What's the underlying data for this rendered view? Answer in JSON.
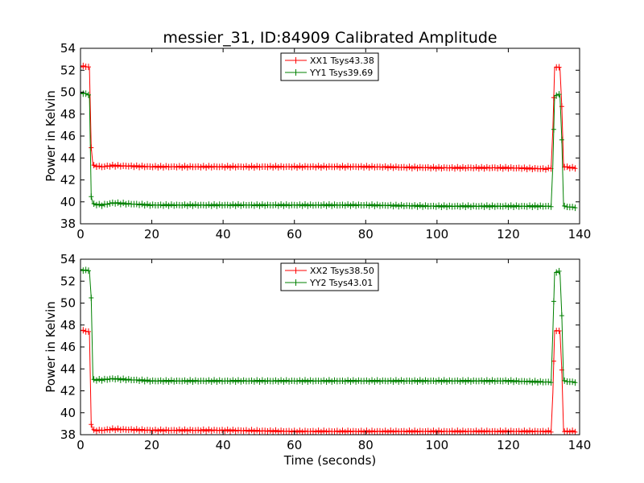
{
  "title": "messier_31, ID:84909 Calibrated Amplitude",
  "colors": {
    "red": "#ff0000",
    "green": "#008000"
  },
  "chart_data": [
    {
      "type": "line",
      "panel": "top",
      "xlabel": "",
      "ylabel": "Power in Kelvin",
      "xlim": [
        0,
        140
      ],
      "ylim": [
        38,
        54
      ],
      "xticks": [
        0,
        20,
        40,
        60,
        80,
        100,
        120,
        140
      ],
      "yticks": [
        38,
        40,
        42,
        44,
        46,
        48,
        50,
        52,
        54
      ],
      "legend_position": "top-center",
      "series": [
        {
          "name": "XX1 Tsys43.38",
          "color": "#ff0000",
          "points": [
            [
              0,
              52.3
            ],
            [
              1,
              52.4
            ],
            [
              2,
              52.3
            ],
            [
              2.5,
              52.2
            ],
            [
              3,
              45
            ],
            [
              3.5,
              43.3
            ],
            [
              6,
              43.2
            ],
            [
              9,
              43.3
            ],
            [
              20,
              43.2
            ],
            [
              40,
              43.2
            ],
            [
              60,
              43.2
            ],
            [
              80,
              43.2
            ],
            [
              100,
              43.1
            ],
            [
              120,
              43.1
            ],
            [
              131,
              43.0
            ],
            [
              132,
              43.1
            ],
            [
              132.5,
              46.6
            ],
            [
              133,
              52.3
            ],
            [
              134,
              52.3
            ],
            [
              134.5,
              52.2
            ],
            [
              135,
              48.7
            ],
            [
              135.5,
              43.2
            ],
            [
              138,
              43.1
            ],
            [
              139,
              43.1
            ]
          ]
        },
        {
          "name": "YY1 Tsys39.69",
          "color": "#008000",
          "points": [
            [
              0,
              49.9
            ],
            [
              1,
              49.9
            ],
            [
              2,
              49.8
            ],
            [
              2.5,
              49.7
            ],
            [
              3,
              40.5
            ],
            [
              3.5,
              39.8
            ],
            [
              6,
              39.7
            ],
            [
              9,
              39.9
            ],
            [
              20,
              39.7
            ],
            [
              40,
              39.7
            ],
            [
              60,
              39.7
            ],
            [
              80,
              39.7
            ],
            [
              100,
              39.6
            ],
            [
              120,
              39.6
            ],
            [
              131,
              39.6
            ],
            [
              132,
              39.6
            ],
            [
              132.5,
              43.4
            ],
            [
              133,
              49.7
            ],
            [
              134,
              49.8
            ],
            [
              134.5,
              49.7
            ],
            [
              135,
              45.7
            ],
            [
              135.5,
              39.6
            ],
            [
              138,
              39.5
            ],
            [
              139,
              39.5
            ]
          ]
        }
      ]
    },
    {
      "type": "line",
      "panel": "bottom",
      "xlabel": "Time (seconds)",
      "ylabel": "Power in Kelvin",
      "xlim": [
        0,
        140
      ],
      "ylim": [
        38,
        54
      ],
      "xticks": [
        0,
        20,
        40,
        60,
        80,
        100,
        120,
        140
      ],
      "yticks": [
        38,
        40,
        42,
        44,
        46,
        48,
        50,
        52,
        54
      ],
      "legend_position": "top-center",
      "series": [
        {
          "name": "XX2 Tsys38.50",
          "color": "#ff0000",
          "points": [
            [
              0,
              47.5
            ],
            [
              1,
              47.5
            ],
            [
              2,
              47.4
            ],
            [
              2.5,
              47.3
            ],
            [
              3,
              39.0
            ],
            [
              3.5,
              38.4
            ],
            [
              6,
              38.4
            ],
            [
              9,
              38.5
            ],
            [
              20,
              38.4
            ],
            [
              40,
              38.4
            ],
            [
              60,
              38.3
            ],
            [
              80,
              38.3
            ],
            [
              100,
              38.3
            ],
            [
              120,
              38.3
            ],
            [
              131,
              38.3
            ],
            [
              132,
              38.3
            ],
            [
              132.5,
              41.8
            ],
            [
              133,
              47.5
            ],
            [
              134,
              47.5
            ],
            [
              134.5,
              47.4
            ],
            [
              135,
              43.9
            ],
            [
              135.5,
              38.3
            ],
            [
              138,
              38.3
            ],
            [
              139,
              38.3
            ]
          ]
        },
        {
          "name": "YY2 Tsys43.01",
          "color": "#008000",
          "points": [
            [
              0,
              53.0
            ],
            [
              1,
              53.0
            ],
            [
              2,
              53.0
            ],
            [
              2.5,
              52.9
            ],
            [
              3,
              50.5
            ],
            [
              3.5,
              43.0
            ],
            [
              6,
              43.0
            ],
            [
              9,
              43.1
            ],
            [
              20,
              42.9
            ],
            [
              40,
              42.9
            ],
            [
              60,
              42.9
            ],
            [
              80,
              42.9
            ],
            [
              100,
              42.9
            ],
            [
              120,
              42.9
            ],
            [
              131,
              42.8
            ],
            [
              132,
              42.8
            ],
            [
              132.5,
              47.4
            ],
            [
              133,
              52.8
            ],
            [
              134,
              52.9
            ],
            [
              134.5,
              52.8
            ],
            [
              135,
              48.9
            ],
            [
              135.5,
              42.9
            ],
            [
              138,
              42.8
            ],
            [
              139,
              42.8
            ]
          ]
        }
      ]
    }
  ]
}
